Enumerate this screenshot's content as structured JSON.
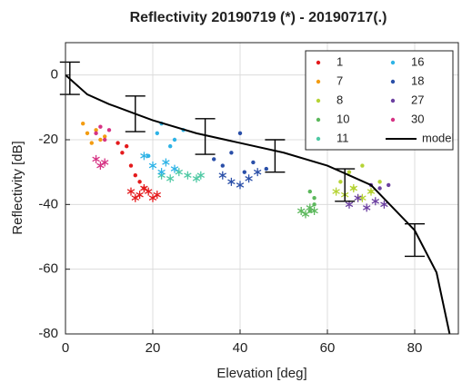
{
  "chart_data": {
    "type": "scatter",
    "title": "Reflectivity 20190719 (*) - 20190717(.)",
    "xlabel": "Elevation [deg]",
    "ylabel": "Reflectivity [dB]",
    "xlim": [
      0,
      90
    ],
    "ylim": [
      -80,
      10
    ],
    "xticks": [
      0,
      20,
      40,
      60,
      80
    ],
    "yticks": [
      -80,
      -60,
      -40,
      -20,
      0
    ],
    "grid": true,
    "legend": "upper right",
    "series": [
      {
        "name": "1",
        "color": "#e41a1c",
        "x": [
          12,
          13,
          14,
          15,
          16,
          17,
          18
        ],
        "values": [
          -21,
          -24,
          -22,
          -28,
          -31,
          -33,
          -35
        ],
        "x_star": [
          15,
          16,
          17,
          18,
          19,
          20,
          21
        ],
        "values_star": [
          -36,
          -38,
          -37,
          -35,
          -36,
          -38,
          -37
        ]
      },
      {
        "name": "7",
        "color": "#f39c12",
        "x": [
          4,
          5,
          6,
          7,
          8,
          9
        ],
        "values": [
          -15,
          -18,
          -21,
          -17,
          -20,
          -19
        ],
        "x_star": [],
        "values_star": []
      },
      {
        "name": "8",
        "color": "#b5d334",
        "x": [
          63,
          65,
          66,
          68,
          70,
          72
        ],
        "values": [
          -33,
          -30,
          -35,
          -28,
          -36,
          -33
        ],
        "x_star": [
          62,
          64,
          66,
          68,
          70
        ],
        "values_star": [
          -36,
          -37,
          -35,
          -38,
          -36
        ]
      },
      {
        "name": "10",
        "color": "#5cb85c",
        "x": [
          56,
          57,
          57,
          56
        ],
        "values": [
          -36,
          -38,
          -40,
          -42
        ],
        "x_star": [
          54,
          55,
          56,
          57
        ],
        "values_star": [
          -42,
          -43,
          -41,
          -42
        ]
      },
      {
        "name": "11",
        "color": "#4fc9a4",
        "x": [],
        "values": [],
        "x_star": [
          22,
          24,
          26,
          28,
          30,
          31
        ],
        "values_star": [
          -31,
          -32,
          -30,
          -31,
          -32,
          -31
        ]
      },
      {
        "name": "16",
        "color": "#2eb3e6",
        "x": [
          19,
          21,
          22,
          24,
          25,
          27
        ],
        "values": [
          -25,
          -18,
          -15,
          -22,
          -20,
          -17
        ],
        "x_star": [
          18,
          20,
          22,
          23,
          25
        ],
        "values_star": [
          -25,
          -28,
          -30,
          -27,
          -29
        ]
      },
      {
        "name": "18",
        "color": "#2a4fa8",
        "x": [
          34,
          36,
          38,
          40,
          41,
          43,
          46
        ],
        "values": [
          -26,
          -28,
          -24,
          -18,
          -30,
          -27,
          -29
        ],
        "x_star": [
          36,
          38,
          40,
          42,
          44
        ],
        "values_star": [
          -31,
          -33,
          -34,
          -32,
          -30
        ]
      },
      {
        "name": "27",
        "color": "#6b3fa0",
        "x": [
          70,
          72,
          74
        ],
        "values": [
          -34,
          -35,
          -34
        ],
        "x_star": [
          65,
          67,
          69,
          71,
          73
        ],
        "values_star": [
          -40,
          -38,
          -41,
          -39,
          -40
        ]
      },
      {
        "name": "30",
        "color": "#d63384",
        "x": [
          7,
          8,
          9,
          10
        ],
        "values": [
          -18,
          -16,
          -20,
          -17
        ],
        "x_star": [
          7,
          8,
          9
        ],
        "values_star": [
          -26,
          -28,
          -27
        ]
      }
    ],
    "model": {
      "name": "model",
      "color": "#000000",
      "x": [
        0,
        5,
        10,
        20,
        30,
        40,
        50,
        60,
        70,
        80,
        85,
        88
      ],
      "values": [
        0,
        -6,
        -9,
        -14,
        -18,
        -21,
        -24,
        -28,
        -34,
        -48,
        -61,
        -80
      ],
      "errorbars": {
        "x": [
          1,
          16,
          32,
          48,
          64,
          80
        ],
        "values": [
          -1,
          -12,
          -19,
          -25,
          -34,
          -51
        ],
        "errors": [
          5,
          5.5,
          5.5,
          5,
          5,
          5
        ]
      }
    }
  }
}
